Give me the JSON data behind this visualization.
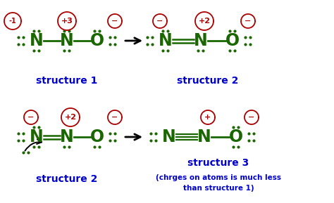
{
  "bg_color": "#ffffff",
  "green": "#1a6600",
  "red": "#aa0000",
  "blue": "#0000cc",
  "black": "#000000",
  "struct1_label": "structure 1",
  "struct2_label": "structure 2",
  "struct3_label": "structure 3",
  "struct3_note1": "(chrges on atoms is much less",
  "struct3_note2": "than structure 1)",
  "figw": 4.74,
  "figh": 2.89,
  "dpi": 100
}
